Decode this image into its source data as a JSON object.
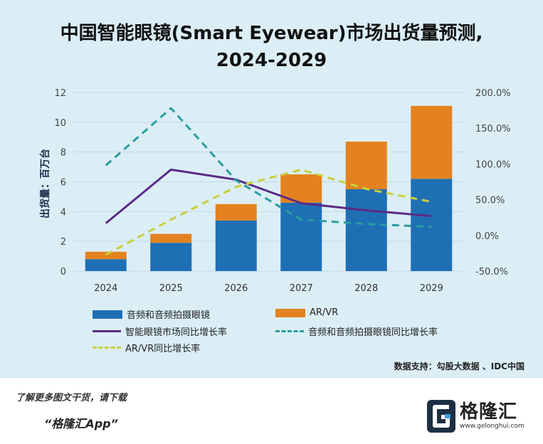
{
  "chart_data": {
    "type": "bar",
    "title_line1": "中国智能眼镜(Smart Eyewear)市场出货量预测,",
    "title_line2": "2024-2029",
    "ylabel": "出货量：百万台",
    "categories": [
      "2024",
      "2025",
      "2026",
      "2027",
      "2028",
      "2029"
    ],
    "ylim": [
      0,
      12
    ],
    "y_ticks": [
      "0",
      "2",
      "4",
      "6",
      "8",
      "10",
      "12"
    ],
    "y2lim": [
      -50,
      200
    ],
    "y2_ticks": [
      "-50.0%",
      "0.0%",
      "50.0%",
      "100.0%",
      "150.0%",
      "200.0%"
    ],
    "bar_series": [
      {
        "name": "音频和音频拍摄眼镜",
        "values": [
          0.8,
          1.9,
          3.4,
          4.6,
          5.5,
          6.2
        ],
        "color": "#1f6fb5"
      },
      {
        "name": "AR/VR",
        "values": [
          0.5,
          0.6,
          1.1,
          1.9,
          3.2,
          4.9
        ],
        "color": "#e3821f"
      }
    ],
    "line_series": [
      {
        "name": "智能眼镜市场同比增长率",
        "values": [
          17,
          92,
          78,
          45,
          35,
          27
        ],
        "color": "#5b2a86",
        "style": "solid"
      },
      {
        "name": "音频和音频拍摄眼镜同比增长率",
        "values": [
          98,
          178,
          77,
          22,
          16,
          12
        ],
        "color": "#2a9d9f",
        "style": "dashed"
      },
      {
        "name": "AR/VR同比增长率",
        "values": [
          -27,
          22,
          68,
          92,
          65,
          47
        ],
        "color": "#c8cf3a",
        "style": "dashed"
      }
    ],
    "grid": true,
    "legend_position": "bottom"
  },
  "footer": {
    "source": "数据支持：勾股大数据 、IDC中国",
    "promo_line1": "了解更多图文干货，请下载",
    "promo_line2": "“格隆汇App”",
    "logo_name": "格隆汇",
    "logo_url": "www.gelonghui.com"
  },
  "colors": {
    "background": "#dbeef6",
    "primary_bar": "#1f6fb5",
    "secondary_bar": "#e3821f"
  }
}
